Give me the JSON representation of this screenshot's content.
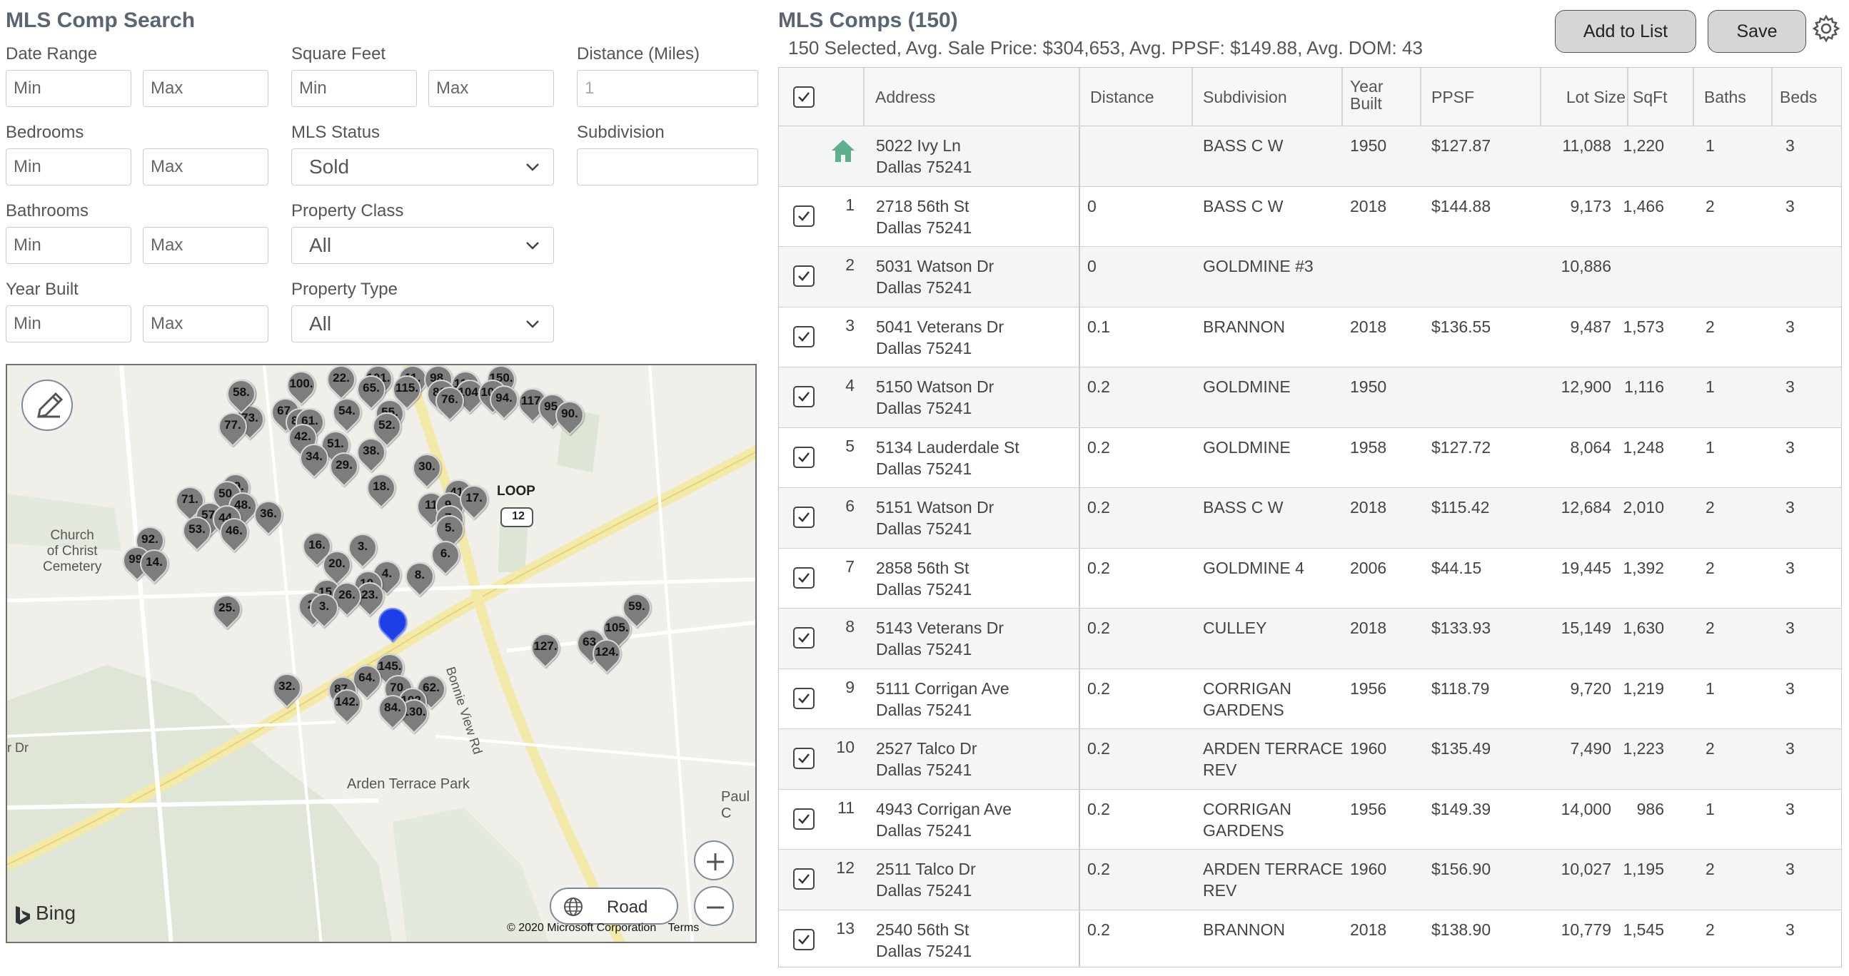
{
  "search": {
    "title": "MLS Comp Search",
    "date_range_label": "Date Range",
    "square_feet_label": "Square Feet",
    "distance_label": "Distance (Miles)",
    "bedrooms_label": "Bedrooms",
    "mls_status_label": "MLS Status",
    "subdivision_label": "Subdivision",
    "bathrooms_label": "Bathrooms",
    "property_class_label": "Property Class",
    "year_built_label": "Year Built",
    "property_type_label": "Property Type",
    "min_placeholder": "Min",
    "max_placeholder": "Max",
    "distance_value": "1",
    "mls_status_value": "Sold",
    "property_class_value": "All",
    "property_type_value": "All"
  },
  "map": {
    "loop_label": "LOOP",
    "loop_number": "12",
    "church_label": "Church\nof Christ\nCemetery",
    "park_label": "Arden Terrace Park",
    "road_label": "Bonnie View Rd",
    "paul_label": "Paul C",
    "dr_label": "r Dr",
    "road_button": "Road",
    "bing_label": "Bing",
    "copyright": "© 2020 Microsoft Corporation",
    "terms": "Terms",
    "pins": [
      "91.",
      "100.",
      "22.",
      "101.",
      "11.",
      "98.",
      "113.",
      "150.",
      "65.",
      "115.",
      "80.",
      "104.",
      "107.",
      "94.",
      "117.",
      "73.",
      "67.",
      "85.",
      "54.",
      "55.",
      "95.",
      "90.",
      "76.",
      "61.",
      "77.",
      "52.",
      "42.",
      "51.",
      "38.",
      "34.",
      "29.",
      "30.",
      "49.",
      "50.",
      "18.",
      "41.",
      "71.",
      "48.",
      "36.",
      "57.",
      "44.",
      "53.",
      "46.",
      "11",
      "9.",
      "7.",
      "5.",
      "17.",
      "16.",
      "3.",
      "92.",
      "99.",
      "14.",
      "20.",
      "6.",
      "4.",
      "8.",
      "10.",
      "23.",
      "15.",
      "26.",
      "2.",
      "3.",
      "25.",
      "59.",
      "105.",
      "127.",
      "63.",
      "124.",
      "145.",
      "64.",
      "70.",
      "62.",
      "87.",
      "102.",
      "32.",
      "130.",
      "142.",
      "84.",
      "58."
    ]
  },
  "comps": {
    "title": "MLS Comps (150)",
    "summary": "150 Selected, Avg. Sale Price: $304,653, Avg. PPSF: $149.88, Avg. DOM: 43",
    "add_to_list": "Add to List",
    "save": "Save",
    "headers": {
      "address": "Address",
      "distance": "Distance",
      "subdivision": "Subdivision",
      "year_built_1": "Year",
      "year_built_2": "Built",
      "ppsf": "PPSF",
      "lot_size": "Lot Size",
      "sqft": "SqFt",
      "baths": "Baths",
      "beds": "Beds"
    },
    "subject": {
      "street": "5022 Ivy Ln",
      "city": "Dallas 75241",
      "distance": "",
      "subdivision": "BASS C W",
      "year": "1950",
      "ppsf": "$127.87",
      "lot": "11,088",
      "sqft": "1,220",
      "baths": "1",
      "beds": "3"
    },
    "rows": [
      {
        "num": "1",
        "street": "2718 56th St",
        "city": "Dallas 75241",
        "distance": "0",
        "subdivision": "BASS C W",
        "year": "2018",
        "ppsf": "$144.88",
        "lot": "9,173",
        "sqft": "1,466",
        "baths": "2",
        "beds": "3"
      },
      {
        "num": "2",
        "street": "5031 Watson Dr",
        "city": "Dallas 75241",
        "distance": "0",
        "subdivision": "GOLDMINE #3",
        "year": "",
        "ppsf": "",
        "lot": "10,886",
        "sqft": "",
        "baths": "",
        "beds": ""
      },
      {
        "num": "3",
        "street": "5041 Veterans Dr",
        "city": "Dallas 75241",
        "distance": "0.1",
        "subdivision": "BRANNON",
        "year": "2018",
        "ppsf": "$136.55",
        "lot": "9,487",
        "sqft": "1,573",
        "baths": "2",
        "beds": "3"
      },
      {
        "num": "4",
        "street": "5150 Watson Dr",
        "city": "Dallas 75241",
        "distance": "0.2",
        "subdivision": "GOLDMINE",
        "year": "1950",
        "ppsf": "",
        "lot": "12,900",
        "sqft": "1,116",
        "baths": "1",
        "beds": "3"
      },
      {
        "num": "5",
        "street": "5134 Lauderdale St",
        "city": "Dallas 75241",
        "distance": "0.2",
        "subdivision": "GOLDMINE",
        "year": "1958",
        "ppsf": "$127.72",
        "lot": "8,064",
        "sqft": "1,248",
        "baths": "1",
        "beds": "3"
      },
      {
        "num": "6",
        "street": "5151 Watson Dr",
        "city": "Dallas 75241",
        "distance": "0.2",
        "subdivision": "BASS C W",
        "year": "2018",
        "ppsf": "$115.42",
        "lot": "12,684",
        "sqft": "2,010",
        "baths": "2",
        "beds": "3"
      },
      {
        "num": "7",
        "street": "2858 56th St",
        "city": "Dallas 75241",
        "distance": "0.2",
        "subdivision": "GOLDMINE 4",
        "year": "2006",
        "ppsf": "$44.15",
        "lot": "19,445",
        "sqft": "1,392",
        "baths": "2",
        "beds": "3"
      },
      {
        "num": "8",
        "street": "5143 Veterans Dr",
        "city": "Dallas 75241",
        "distance": "0.2",
        "subdivision": "CULLEY",
        "year": "2018",
        "ppsf": "$133.93",
        "lot": "15,149",
        "sqft": "1,630",
        "baths": "2",
        "beds": "3"
      },
      {
        "num": "9",
        "street": "5111 Corrigan Ave",
        "city": "Dallas 75241",
        "distance": "0.2",
        "subdivision": "CORRIGAN\nGARDENS",
        "year": "1956",
        "ppsf": "$118.79",
        "lot": "9,720",
        "sqft": "1,219",
        "baths": "1",
        "beds": "3"
      },
      {
        "num": "10",
        "street": "2527 Talco Dr",
        "city": "Dallas 75241",
        "distance": "0.2",
        "subdivision": "ARDEN TERRACE\nREV",
        "year": "1960",
        "ppsf": "$135.49",
        "lot": "7,490",
        "sqft": "1,223",
        "baths": "2",
        "beds": "3"
      },
      {
        "num": "11",
        "street": "4943 Corrigan Ave",
        "city": "Dallas 75241",
        "distance": "0.2",
        "subdivision": "CORRIGAN\nGARDENS",
        "year": "1956",
        "ppsf": "$149.39",
        "lot": "14,000",
        "sqft": "986",
        "baths": "1",
        "beds": "3"
      },
      {
        "num": "12",
        "street": "2511 Talco Dr",
        "city": "Dallas 75241",
        "distance": "0.2",
        "subdivision": "ARDEN TERRACE\nREV",
        "year": "1960",
        "ppsf": "$156.90",
        "lot": "10,027",
        "sqft": "1,195",
        "baths": "2",
        "beds": "3"
      },
      {
        "num": "13",
        "street": "2540 56th St",
        "city": "Dallas 75241",
        "distance": "0.2",
        "subdivision": "BRANNON",
        "year": "2018",
        "ppsf": "$138.90",
        "lot": "10,779",
        "sqft": "1,545",
        "baths": "2",
        "beds": "3"
      }
    ]
  },
  "colors": {
    "subject_home": "#5fae8e",
    "subject_pin": "#1d3fe6",
    "comp_pin": "#7d7d7d"
  }
}
